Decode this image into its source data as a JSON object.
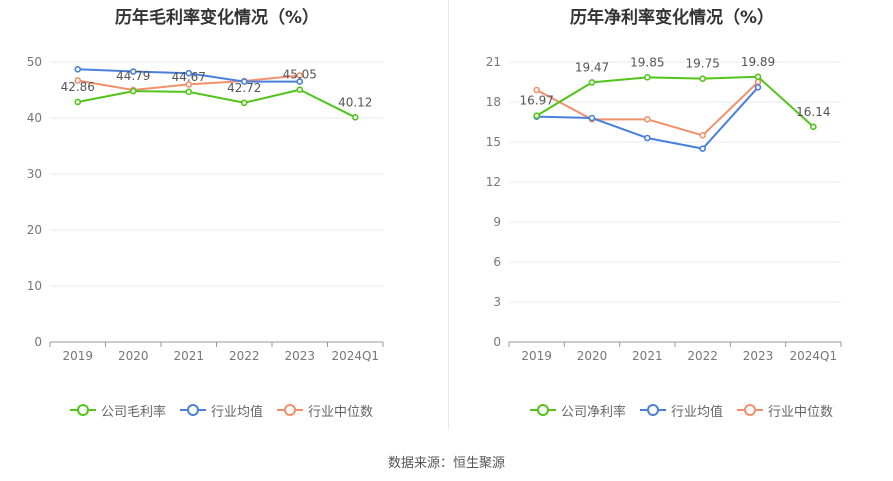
{
  "footer": "数据来源：恒生聚源",
  "chart_data": [
    {
      "type": "line",
      "title": "历年毛利率变化情况（%）",
      "categories": [
        "2019",
        "2020",
        "2021",
        "2022",
        "2023",
        "2024Q1"
      ],
      "ylim": [
        0,
        50
      ],
      "yticks": [
        0,
        10,
        20,
        30,
        40,
        50
      ],
      "grid": true,
      "legend_position": "bottom",
      "series": [
        {
          "name": "公司毛利率",
          "color": "#52c41a",
          "values": [
            42.86,
            44.79,
            44.67,
            42.72,
            45.05,
            40.12
          ],
          "show_labels": true
        },
        {
          "name": "行业均值",
          "color": "#4a7fdc",
          "values": [
            48.7,
            48.3,
            48.0,
            46.5,
            46.5,
            null
          ],
          "show_labels": false
        },
        {
          "name": "行业中位数",
          "color": "#f2906c",
          "values": [
            46.7,
            45.0,
            46.0,
            46.6,
            47.6,
            null
          ],
          "show_labels": false
        }
      ]
    },
    {
      "type": "line",
      "title": "历年净利率变化情况（%）",
      "categories": [
        "2019",
        "2020",
        "2021",
        "2022",
        "2023",
        "2024Q1"
      ],
      "ylim": [
        0,
        21
      ],
      "yticks": [
        0,
        3,
        6,
        9,
        12,
        15,
        18,
        21
      ],
      "grid": true,
      "legend_position": "bottom",
      "series": [
        {
          "name": "公司净利率",
          "color": "#52c41a",
          "values": [
            16.97,
            19.47,
            19.85,
            19.75,
            19.89,
            16.14
          ],
          "show_labels": true
        },
        {
          "name": "行业均值",
          "color": "#4a7fdc",
          "values": [
            16.9,
            16.8,
            15.3,
            14.5,
            19.1,
            null
          ],
          "show_labels": false
        },
        {
          "name": "行业中位数",
          "color": "#f2906c",
          "values": [
            18.9,
            16.7,
            16.7,
            15.5,
            19.5,
            null
          ],
          "show_labels": false
        }
      ]
    }
  ]
}
